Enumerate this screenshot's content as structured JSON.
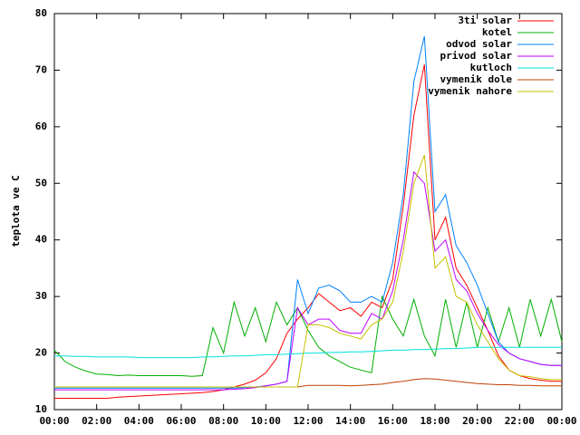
{
  "chart_data": {
    "type": "line",
    "ylabel": "teplota ve C",
    "x": [
      0,
      0.5,
      1,
      1.5,
      2,
      2.5,
      3,
      3.5,
      4,
      4.5,
      5,
      5.5,
      6,
      6.5,
      7,
      7.5,
      8,
      8.5,
      9,
      9.5,
      10,
      10.5,
      11,
      11.5,
      12,
      12.5,
      13,
      13.5,
      14,
      14.5,
      15,
      15.5,
      16,
      16.5,
      17,
      17.5,
      18,
      18.5,
      19,
      19.5,
      20,
      20.5,
      21,
      21.5,
      22,
      22.5,
      23,
      23.5,
      24
    ],
    "xlim": [
      0,
      24
    ],
    "xticks": [
      {
        "value": 0,
        "label": "00:00"
      },
      {
        "value": 2,
        "label": "02:00"
      },
      {
        "value": 4,
        "label": "04:00"
      },
      {
        "value": 6,
        "label": "06:00"
      },
      {
        "value": 8,
        "label": "08:00"
      },
      {
        "value": 10,
        "label": "10:00"
      },
      {
        "value": 12,
        "label": "12:00"
      },
      {
        "value": 14,
        "label": "14:00"
      },
      {
        "value": 16,
        "label": "16:00"
      },
      {
        "value": 18,
        "label": "18:00"
      },
      {
        "value": 20,
        "label": "20:00"
      },
      {
        "value": 22,
        "label": "22:00"
      },
      {
        "value": 24,
        "label": "00:00"
      }
    ],
    "ylim": [
      10,
      80
    ],
    "yticks": [
      10,
      20,
      30,
      40,
      50,
      60,
      70,
      80
    ],
    "legend": "top-right",
    "series": [
      {
        "name": "3ti solar",
        "color": "#ff0000",
        "values": [
          12,
          12,
          12,
          12,
          12,
          12,
          12.2,
          12.3,
          12.4,
          12.5,
          12.6,
          12.7,
          12.8,
          12.9,
          13,
          13.2,
          13.5,
          14,
          14.5,
          15.2,
          16.5,
          19,
          23.5,
          26,
          28,
          30.5,
          29,
          27.5,
          28,
          26.5,
          29,
          28,
          33,
          46,
          62,
          71,
          40,
          44,
          35,
          32,
          28,
          24,
          19.5,
          17,
          16,
          15.5,
          15.2,
          15,
          15
        ]
      },
      {
        "name": "kotel",
        "color": "#00b000",
        "values": [
          20.5,
          18.5,
          17.5,
          16.8,
          16.3,
          16.2,
          16,
          16.1,
          16,
          16,
          16,
          16,
          16,
          15.9,
          16,
          24.5,
          20,
          29,
          23,
          28,
          22,
          29,
          25,
          28,
          24,
          21,
          19.5,
          18.5,
          17.5,
          17,
          16.5,
          30,
          26,
          23,
          29.5,
          23,
          19.5,
          29.5,
          21,
          29,
          21,
          28,
          22,
          28,
          21,
          29.5,
          23,
          29.5,
          22
        ]
      },
      {
        "name": "odvod solar",
        "color": "#0080ff",
        "values": [
          13.8,
          13.8,
          13.8,
          13.8,
          13.8,
          13.8,
          13.8,
          13.8,
          13.8,
          13.8,
          13.8,
          13.8,
          13.8,
          13.8,
          13.8,
          13.8,
          13.8,
          13.8,
          13.9,
          14,
          14.2,
          14.5,
          15,
          33,
          27,
          31.5,
          32,
          31,
          29,
          29,
          30,
          29,
          36,
          48,
          68,
          76,
          45,
          48,
          39,
          36,
          32,
          27,
          22,
          20,
          19,
          18.5,
          18,
          17.8,
          17.8
        ]
      },
      {
        "name": "privod solar",
        "color": "#c000ff",
        "values": [
          13.5,
          13.5,
          13.5,
          13.5,
          13.5,
          13.5,
          13.5,
          13.5,
          13.5,
          13.5,
          13.5,
          13.5,
          13.5,
          13.5,
          13.5,
          13.5,
          13.5,
          13.6,
          13.7,
          13.9,
          14.2,
          14.5,
          15,
          28,
          25,
          26,
          26,
          24,
          23.5,
          23.5,
          27,
          26,
          31,
          40,
          52,
          50,
          38,
          40,
          33,
          31,
          27,
          24,
          21.5,
          20,
          19,
          18.5,
          18,
          17.8,
          17.8
        ]
      },
      {
        "name": "kutloch",
        "color": "#00e0e0",
        "values": [
          19.5,
          19.5,
          19.4,
          19.4,
          19.3,
          19.3,
          19.3,
          19.3,
          19.2,
          19.2,
          19.2,
          19.2,
          19.2,
          19.2,
          19.3,
          19.3,
          19.4,
          19.5,
          19.5,
          19.6,
          19.7,
          19.7,
          19.8,
          19.9,
          20,
          20,
          20.1,
          20.1,
          20.2,
          20.2,
          20.3,
          20.4,
          20.5,
          20.5,
          20.6,
          20.6,
          20.7,
          20.8,
          20.8,
          20.9,
          21,
          21,
          21,
          21,
          21,
          21,
          21,
          21,
          21
        ]
      },
      {
        "name": "vymenik dole",
        "color": "#c04000",
        "values": [
          14,
          14,
          14,
          14,
          14,
          14,
          14,
          14,
          14,
          14,
          14,
          14,
          14,
          14,
          14,
          14,
          14,
          14,
          14,
          14,
          14,
          14,
          14,
          14,
          14.3,
          14.3,
          14.3,
          14.3,
          14.2,
          14.3,
          14.4,
          14.5,
          14.8,
          15,
          15.3,
          15.5,
          15.4,
          15.2,
          15,
          14.8,
          14.6,
          14.5,
          14.4,
          14.4,
          14.3,
          14.3,
          14.2,
          14.2,
          14.2
        ]
      },
      {
        "name": "vymenik nahore",
        "color": "#c8c000",
        "values": [
          14,
          14,
          14,
          14,
          14,
          14,
          14,
          14,
          14,
          14,
          14,
          14,
          14,
          14,
          14,
          14,
          14,
          14,
          14,
          14,
          14,
          14,
          14,
          14,
          25,
          25,
          24.5,
          23.5,
          23,
          22.5,
          25,
          26,
          29,
          38,
          50,
          55,
          35,
          37,
          30,
          29,
          25,
          22,
          19,
          17,
          16,
          15.8,
          15.5,
          15.3,
          15.3
        ]
      }
    ]
  }
}
